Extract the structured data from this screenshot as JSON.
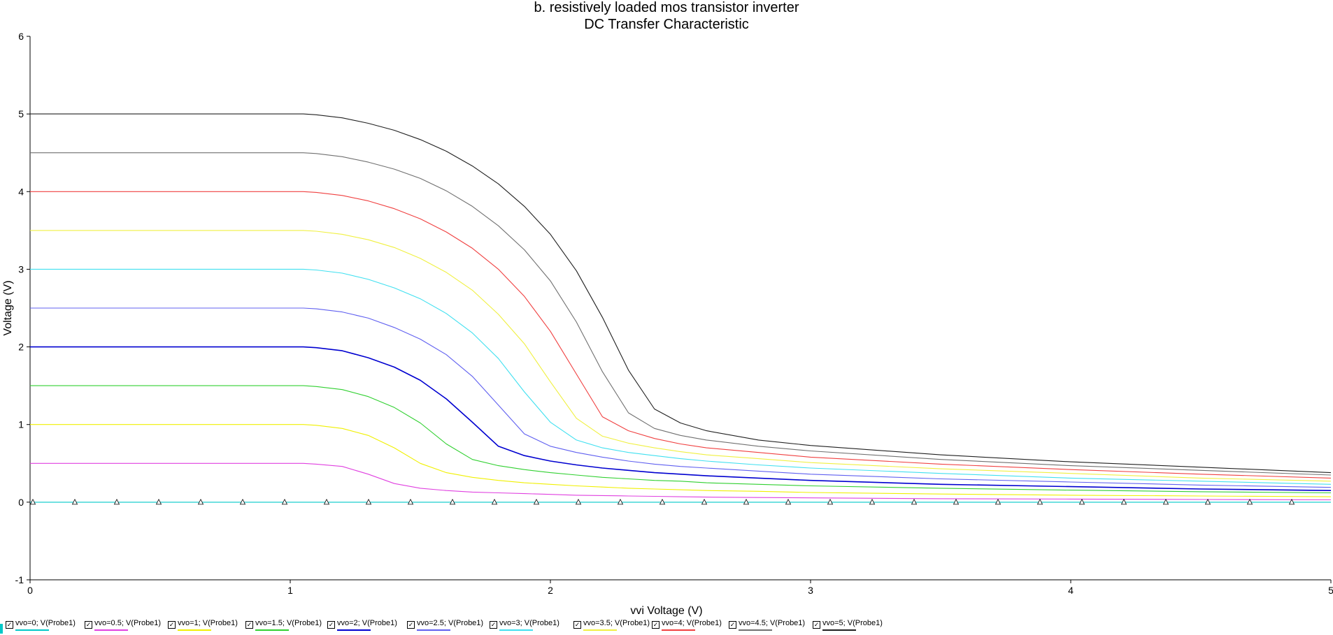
{
  "title_line1": "b. resistively loaded mos transistor inverter",
  "title_line2": "DC Transfer Characteristic",
  "chart_data": {
    "type": "line",
    "title": "b. resistively loaded mos transistor inverter",
    "subtitle": "DC Transfer Characteristic",
    "xlabel": "vvi Voltage (V)",
    "ylabel": "Voltage (V)",
    "xlim": [
      0,
      5
    ],
    "ylim": [
      -1,
      6
    ],
    "xticks": [
      "0",
      "1",
      "2",
      "3",
      "4",
      "5"
    ],
    "yticks": [
      "-1",
      "0",
      "1",
      "2",
      "3",
      "4",
      "5",
      "6"
    ],
    "grid": false,
    "legend_position": "bottom",
    "x": [
      0,
      1,
      1.05,
      1.1,
      1.2,
      1.3,
      1.4,
      1.5,
      1.6,
      1.7,
      1.8,
      1.9,
      2,
      2.1,
      2.2,
      2.3,
      2.4,
      2.5,
      2.6,
      2.8,
      3,
      3.5,
      4,
      4.5,
      5
    ],
    "series": [
      {
        "name": "vvo=0; V(Probe1)",
        "color": "#00c8c8",
        "markers": "triangle",
        "values": [
          0,
          0,
          0,
          0,
          0,
          0,
          0,
          0,
          0,
          0,
          0,
          0,
          0,
          0,
          0,
          0,
          0,
          0,
          0,
          0,
          0,
          0,
          0,
          0,
          0
        ]
      },
      {
        "name": "vvo=0.5; V(Probe1)",
        "color": "#e040e0",
        "values": [
          0.5,
          0.5,
          0.5,
          0.49,
          0.46,
          0.36,
          0.24,
          0.18,
          0.15,
          0.13,
          0.12,
          0.11,
          0.1,
          0.09,
          0.085,
          0.08,
          0.075,
          0.07,
          0.065,
          0.06,
          0.055,
          0.045,
          0.04,
          0.035,
          0.03
        ]
      },
      {
        "name": "vvo=1; V(Probe1)",
        "color": "#f0f000",
        "values": [
          1,
          1,
          1,
          0.99,
          0.95,
          0.86,
          0.7,
          0.5,
          0.38,
          0.32,
          0.28,
          0.25,
          0.23,
          0.21,
          0.195,
          0.18,
          0.17,
          0.16,
          0.15,
          0.14,
          0.125,
          0.105,
          0.09,
          0.08,
          0.07
        ]
      },
      {
        "name": "vvo=1.5; V(Probe1)",
        "color": "#30d030",
        "values": [
          1.5,
          1.5,
          1.5,
          1.49,
          1.45,
          1.36,
          1.22,
          1.02,
          0.75,
          0.55,
          0.47,
          0.42,
          0.38,
          0.35,
          0.32,
          0.3,
          0.28,
          0.27,
          0.25,
          0.23,
          0.21,
          0.18,
          0.155,
          0.135,
          0.12
        ]
      },
      {
        "name": "vvo=2; V(Probe1)",
        "color": "#0000d0",
        "values": [
          2,
          2,
          2,
          1.99,
          1.95,
          1.86,
          1.74,
          1.57,
          1.33,
          1.03,
          0.72,
          0.6,
          0.53,
          0.48,
          0.44,
          0.41,
          0.38,
          0.36,
          0.34,
          0.31,
          0.28,
          0.23,
          0.2,
          0.17,
          0.15
        ]
      },
      {
        "name": "vvo=2.5; V(Probe1)",
        "color": "#6060f0",
        "values": [
          2.5,
          2.5,
          2.5,
          2.49,
          2.45,
          2.37,
          2.25,
          2.1,
          1.9,
          1.62,
          1.25,
          0.88,
          0.72,
          0.64,
          0.58,
          0.53,
          0.49,
          0.46,
          0.44,
          0.4,
          0.36,
          0.3,
          0.26,
          0.22,
          0.19
        ]
      },
      {
        "name": "vvo=3; V(Probe1)",
        "color": "#40e0f0",
        "values": [
          3,
          3,
          3,
          2.99,
          2.95,
          2.87,
          2.76,
          2.62,
          2.43,
          2.18,
          1.85,
          1.42,
          1.03,
          0.8,
          0.7,
          0.64,
          0.6,
          0.56,
          0.53,
          0.48,
          0.44,
          0.37,
          0.31,
          0.27,
          0.23
        ]
      },
      {
        "name": "vvo=3.5; V(Probe1)",
        "color": "#f0f040",
        "values": [
          3.5,
          3.5,
          3.5,
          3.49,
          3.45,
          3.38,
          3.28,
          3.14,
          2.96,
          2.73,
          2.42,
          2.04,
          1.55,
          1.08,
          0.85,
          0.76,
          0.7,
          0.65,
          0.61,
          0.56,
          0.51,
          0.43,
          0.37,
          0.31,
          0.27
        ]
      },
      {
        "name": "vvo=4; V(Probe1)",
        "color": "#f04040",
        "values": [
          4,
          4,
          4,
          3.99,
          3.95,
          3.88,
          3.78,
          3.65,
          3.48,
          3.27,
          3,
          2.65,
          2.2,
          1.65,
          1.1,
          0.92,
          0.82,
          0.75,
          0.7,
          0.64,
          0.58,
          0.49,
          0.42,
          0.36,
          0.31
        ]
      },
      {
        "name": "vvo=4.5; V(Probe1)",
        "color": "#707070",
        "values": [
          4.5,
          4.5,
          4.5,
          4.49,
          4.45,
          4.38,
          4.29,
          4.17,
          4.01,
          3.81,
          3.56,
          3.25,
          2.85,
          2.32,
          1.68,
          1.15,
          0.95,
          0.86,
          0.8,
          0.72,
          0.66,
          0.55,
          0.47,
          0.41,
          0.35
        ]
      },
      {
        "name": "vvo=5; V(Probe1)",
        "color": "#202020",
        "values": [
          5,
          5,
          5,
          4.99,
          4.95,
          4.88,
          4.79,
          4.67,
          4.52,
          4.33,
          4.1,
          3.81,
          3.45,
          2.98,
          2.38,
          1.7,
          1.2,
          1.02,
          0.92,
          0.8,
          0.73,
          0.61,
          0.52,
          0.45,
          0.38
        ]
      }
    ]
  }
}
